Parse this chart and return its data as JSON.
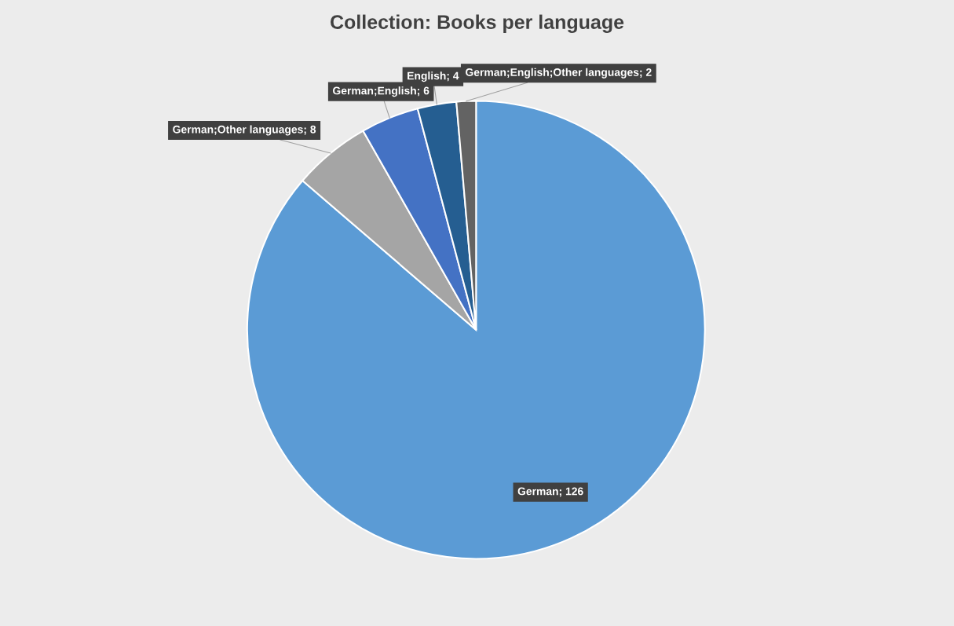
{
  "chart_data": {
    "type": "pie",
    "title": "Collection: Books per language",
    "categories": [
      "German",
      "German;Other languages",
      "German;English",
      "English",
      "German;English;Other languages"
    ],
    "values": [
      126,
      8,
      6,
      4,
      2
    ],
    "colors": [
      "#5b9bd5",
      "#a5a5a5",
      "#4472c4",
      "#255e91",
      "#636363"
    ],
    "value_labels": [
      "; 126",
      "; 8",
      "; 6",
      "; 4",
      "; 2"
    ],
    "legend": false
  }
}
